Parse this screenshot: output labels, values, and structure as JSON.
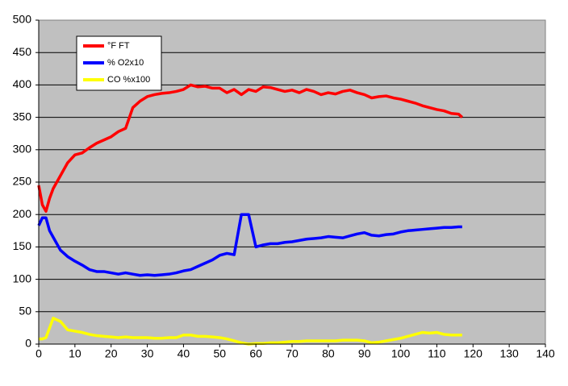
{
  "chart_data": {
    "type": "line",
    "x": [
      0,
      1,
      2,
      3,
      4,
      6,
      8,
      10,
      12,
      14,
      16,
      18,
      20,
      22,
      24,
      26,
      28,
      30,
      32,
      34,
      36,
      38,
      40,
      42,
      44,
      46,
      48,
      50,
      52,
      54,
      56,
      58,
      60,
      62,
      64,
      66,
      68,
      70,
      72,
      74,
      76,
      78,
      80,
      82,
      84,
      86,
      88,
      90,
      92,
      94,
      96,
      98,
      100,
      102,
      104,
      106,
      108,
      110,
      112,
      114,
      116,
      117
    ],
    "series": [
      {
        "name": "°F FT",
        "color": "#ff0000",
        "values": [
          245,
          215,
          205,
          225,
          240,
          260,
          280,
          292,
          295,
          303,
          310,
          315,
          320,
          328,
          333,
          365,
          375,
          382,
          385,
          387,
          388,
          390,
          393,
          400,
          397,
          398,
          395,
          395,
          388,
          393,
          385,
          393,
          390,
          397,
          396,
          393,
          390,
          392,
          388,
          393,
          390,
          385,
          388,
          386,
          390,
          392,
          388,
          385,
          380,
          382,
          383,
          380,
          378,
          375,
          372,
          368,
          365,
          362,
          360,
          356,
          355,
          350
        ]
      },
      {
        "name": "% O2x10",
        "color": "#0000ff",
        "values": [
          183,
          195,
          195,
          175,
          165,
          145,
          135,
          128,
          122,
          115,
          112,
          112,
          110,
          108,
          110,
          108,
          106,
          107,
          106,
          107,
          108,
          110,
          113,
          115,
          120,
          125,
          130,
          137,
          140,
          138,
          200,
          200,
          150,
          153,
          155,
          155,
          157,
          158,
          160,
          162,
          163,
          164,
          166,
          165,
          164,
          167,
          170,
          172,
          168,
          167,
          169,
          170,
          173,
          175,
          176,
          177,
          178,
          179,
          180,
          180,
          181,
          181
        ]
      },
      {
        "name": "CO %x100",
        "color": "#ffff00",
        "values": [
          8,
          8,
          10,
          25,
          40,
          35,
          22,
          20,
          18,
          15,
          13,
          12,
          11,
          10,
          11,
          10,
          10,
          10,
          9,
          9,
          10,
          10,
          14,
          14,
          12,
          12,
          11,
          10,
          8,
          5,
          2,
          0,
          1,
          1,
          2,
          2,
          3,
          4,
          4,
          5,
          5,
          5,
          5,
          5,
          6,
          6,
          6,
          5,
          2,
          3,
          5,
          7,
          9,
          12,
          15,
          18,
          17,
          18,
          15,
          14,
          14,
          14
        ]
      }
    ],
    "xlim": [
      0,
      140
    ],
    "xticks": [
      0,
      10,
      20,
      30,
      40,
      50,
      60,
      70,
      80,
      90,
      100,
      110,
      120,
      130,
      140
    ],
    "ylim": [
      0,
      500
    ],
    "yticks": [
      0,
      50,
      100,
      150,
      200,
      250,
      300,
      350,
      400,
      450,
      500
    ],
    "grid": true,
    "legend": "upper left"
  }
}
